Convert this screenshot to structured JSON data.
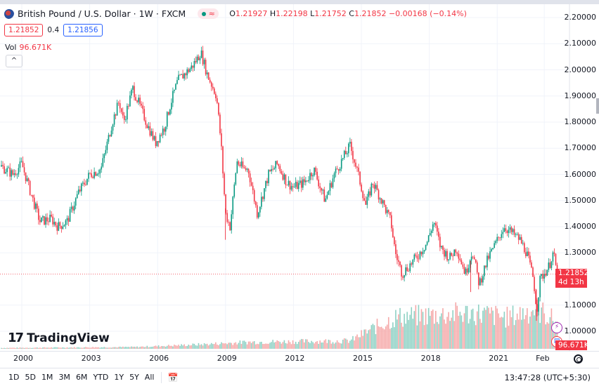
{
  "header": {
    "title": "British Pound / U.S. Dollar · 1W · FXCM",
    "ohlc": {
      "o_label": "O",
      "o": "1.21927",
      "h_label": "H",
      "h": "1.22198",
      "l_label": "L",
      "l": "1.21752",
      "c_label": "C",
      "c": "1.21852",
      "change": "−0.00168 (−0.14%)"
    },
    "status_icon": "approx-icon",
    "sell_price": "1.21852",
    "spread": "0.4",
    "buy_price": "1.21856",
    "vol_label": "Vol",
    "vol_value": "96.671K",
    "collapse_label": "^"
  },
  "price_axis": {
    "ticks": [
      "2.20000",
      "2.10000",
      "2.00000",
      "1.90000",
      "1.80000",
      "1.70000",
      "1.60000",
      "1.50000",
      "1.40000",
      "1.30000",
      "1.10000",
      "1.00000"
    ],
    "last_price": "1.21852",
    "countdown": "4d 13h",
    "volume_badge": "96.671K"
  },
  "time_axis": {
    "ticks": [
      "2000",
      "2003",
      "2006",
      "2009",
      "2012",
      "2015",
      "2018",
      "2021",
      "Feb"
    ]
  },
  "logo": "TradingView",
  "bottom_bar": {
    "timeframes": [
      "1D",
      "5D",
      "1M",
      "3M",
      "6M",
      "YTD",
      "1Y",
      "5Y",
      "All"
    ],
    "clock": "13:47:28 (UTC+5:30)"
  },
  "colors": {
    "up": "#089981",
    "down": "#f23645",
    "vol_up": "#8fd1c4",
    "vol_down": "#f5a9a9"
  },
  "chart_data": {
    "type": "candlestick",
    "symbol": "GBPUSD",
    "interval": "1W",
    "ylim": [
      1.0,
      2.2
    ],
    "price_path": [
      [
        1999.1,
        1.63
      ],
      [
        1999.6,
        1.6
      ],
      [
        2000.0,
        1.64
      ],
      [
        2000.5,
        1.5
      ],
      [
        2000.8,
        1.42
      ],
      [
        2001.3,
        1.43
      ],
      [
        2001.6,
        1.4
      ],
      [
        2002.0,
        1.42
      ],
      [
        2002.5,
        1.53
      ],
      [
        2003.0,
        1.6
      ],
      [
        2003.5,
        1.62
      ],
      [
        2004.0,
        1.8
      ],
      [
        2004.3,
        1.88
      ],
      [
        2004.5,
        1.8
      ],
      [
        2004.9,
        1.93
      ],
      [
        2005.5,
        1.8
      ],
      [
        2005.9,
        1.72
      ],
      [
        2006.3,
        1.78
      ],
      [
        2006.6,
        1.88
      ],
      [
        2006.9,
        1.96
      ],
      [
        2007.5,
        2.01
      ],
      [
        2007.8,
        2.05
      ],
      [
        2007.9,
        2.07
      ],
      [
        2008.2,
        1.98
      ],
      [
        2008.6,
        1.9
      ],
      [
        2008.8,
        1.72
      ],
      [
        2009.0,
        1.45
      ],
      [
        2009.2,
        1.4
      ],
      [
        2009.5,
        1.65
      ],
      [
        2009.8,
        1.62
      ],
      [
        2010.0,
        1.62
      ],
      [
        2010.4,
        1.45
      ],
      [
        2010.9,
        1.6
      ],
      [
        2011.3,
        1.64
      ],
      [
        2011.7,
        1.57
      ],
      [
        2012.0,
        1.55
      ],
      [
        2012.5,
        1.57
      ],
      [
        2012.9,
        1.62
      ],
      [
        2013.4,
        1.5
      ],
      [
        2013.8,
        1.6
      ],
      [
        2014.5,
        1.71
      ],
      [
        2014.8,
        1.62
      ],
      [
        2015.2,
        1.48
      ],
      [
        2015.5,
        1.57
      ],
      [
        2015.9,
        1.5
      ],
      [
        2016.3,
        1.42
      ],
      [
        2016.5,
        1.3
      ],
      [
        2016.8,
        1.22
      ],
      [
        2017.0,
        1.24
      ],
      [
        2017.5,
        1.29
      ],
      [
        2017.9,
        1.34
      ],
      [
        2018.2,
        1.42
      ],
      [
        2018.5,
        1.32
      ],
      [
        2018.9,
        1.28
      ],
      [
        2019.2,
        1.32
      ],
      [
        2019.6,
        1.22
      ],
      [
        2019.9,
        1.31
      ],
      [
        2020.2,
        1.18
      ],
      [
        2020.6,
        1.28
      ],
      [
        2020.9,
        1.33
      ],
      [
        2021.3,
        1.4
      ],
      [
        2021.6,
        1.38
      ],
      [
        2022.0,
        1.35
      ],
      [
        2022.3,
        1.3
      ],
      [
        2022.6,
        1.2
      ],
      [
        2022.75,
        1.08
      ],
      [
        2022.9,
        1.2
      ],
      [
        2023.3,
        1.25
      ],
      [
        2023.45,
        1.3
      ],
      [
        2023.55,
        1.27
      ],
      [
        2023.65,
        1.22
      ]
    ],
    "volume_path": [
      [
        1999.1,
        0.02
      ],
      [
        2005.0,
        0.04
      ],
      [
        2008.0,
        0.1
      ],
      [
        2010.0,
        0.15
      ],
      [
        2014.5,
        0.18
      ],
      [
        2015.5,
        0.45
      ],
      [
        2016.5,
        0.7
      ],
      [
        2018.0,
        0.75
      ],
      [
        2020.0,
        0.8
      ],
      [
        2021.5,
        0.7
      ],
      [
        2022.7,
        0.9
      ],
      [
        2023.65,
        0.6
      ]
    ],
    "last_close": 1.21852
  }
}
